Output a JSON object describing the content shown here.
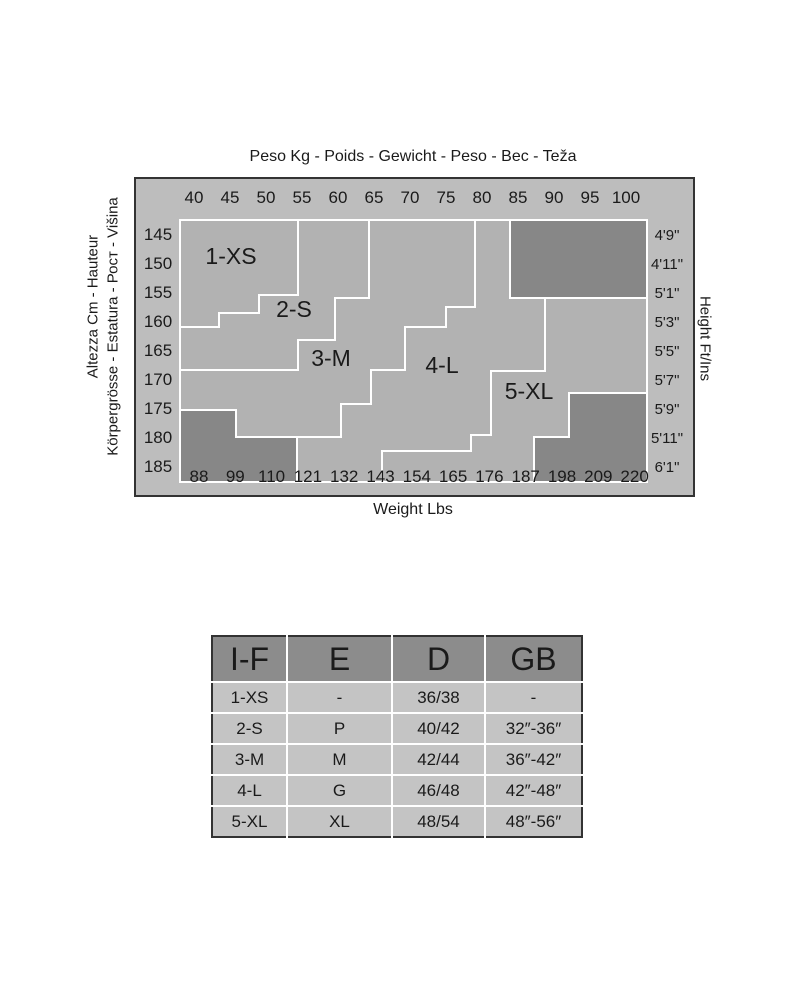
{
  "chart": {
    "top_title": "Peso Kg - Poids - Gewicht - Peso - Bec - Teža",
    "bottom_title": "Weight Lbs",
    "left_title_1": "Altezza Cm - Hauteur",
    "left_title_2": "Körpergrösse - Estatura - Рост - Višina",
    "right_title": "Height Ft/Ins",
    "kg_labels": [
      "40",
      "45",
      "50",
      "55",
      "60",
      "65",
      "70",
      "75",
      "80",
      "85",
      "90",
      "95",
      "100"
    ],
    "lbs_labels": [
      "88",
      "99",
      "110",
      "121",
      "132",
      "143",
      "154",
      "165",
      "176",
      "187",
      "198",
      "209",
      "220"
    ],
    "cm_labels": [
      "145",
      "150",
      "155",
      "160",
      "165",
      "170",
      "175",
      "180",
      "185"
    ],
    "ft_labels": [
      "4'9\"",
      "4'11\"",
      "5'1\"",
      "5'3\"",
      "5'5\"",
      "5'7\"",
      "5'9\"",
      "5'11\"",
      "6'1\""
    ],
    "size_labels": [
      "1-XS",
      "2-S",
      "3-M",
      "4-L",
      "5-XL"
    ],
    "colors": {
      "frame": "#bdbdbd",
      "region": "#b2b2b2",
      "excluded": "#878787",
      "border": "#ffffff"
    }
  },
  "table": {
    "headers": [
      "I-F",
      "E",
      "D",
      "GB"
    ],
    "rows": [
      [
        "1-XS",
        "-",
        "36/38",
        "-"
      ],
      [
        "2-S",
        "P",
        "40/42",
        "32″-36″"
      ],
      [
        "3-M",
        "M",
        "42/44",
        "36″-42″"
      ],
      [
        "4-L",
        "G",
        "46/48",
        "42″-48″"
      ],
      [
        "5-XL",
        "XL",
        "48/54",
        "48″-56″"
      ]
    ]
  }
}
